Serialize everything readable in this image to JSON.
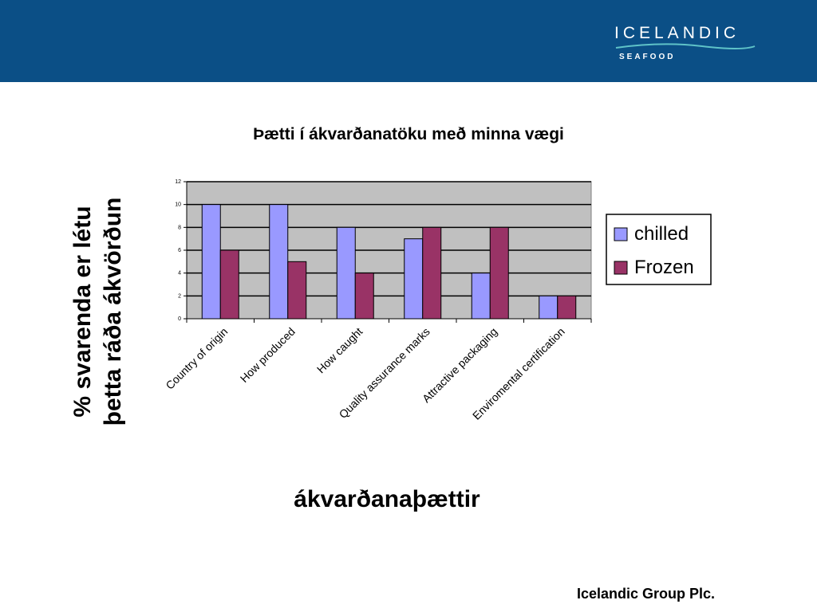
{
  "brand": {
    "name": "ICELANDIC",
    "sub": "SEAFOOD"
  },
  "footer": "Icelandic Group Plc.",
  "chart_data": {
    "type": "bar",
    "title": "Þætti í ákvarðanatöku með minna vægi",
    "xlabel": "ákvarðanaþættir",
    "ylabel_lines": [
      "% svarenda er létu",
      "þetta ráða ákvörðun"
    ],
    "categories": [
      "Country of origin",
      "How produced",
      "How caught",
      "Quality assurance marks",
      "Attractive packaging",
      "Enviromental certification"
    ],
    "series": [
      {
        "name": "chilled",
        "values": [
          10,
          10,
          8,
          7,
          4,
          2
        ],
        "color": "#9999ff"
      },
      {
        "name": "Frozen",
        "values": [
          6,
          5,
          4,
          8,
          8,
          2
        ],
        "color": "#993366"
      }
    ],
    "ylim": [
      0,
      12
    ],
    "yticks": [
      0,
      2,
      4,
      6,
      8,
      10,
      12
    ],
    "grid": true,
    "plot_background": "#c0c0c0",
    "legend_position": "right"
  }
}
